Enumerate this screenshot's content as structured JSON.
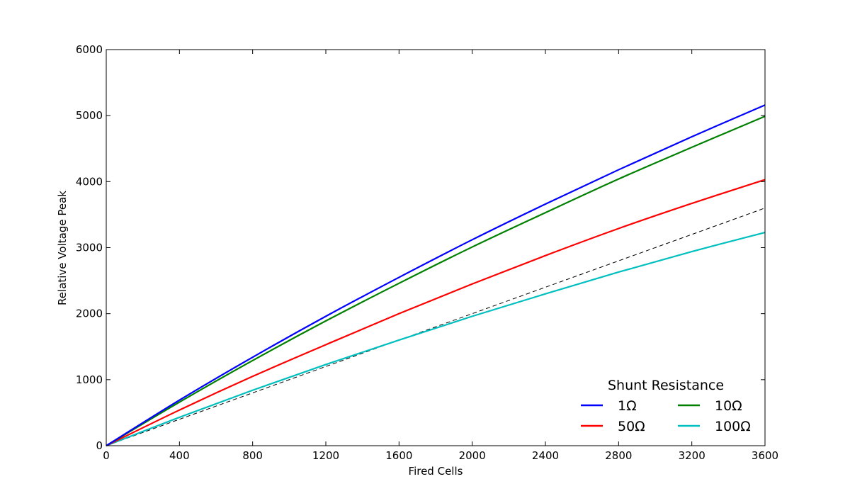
{
  "chart_data": {
    "type": "line",
    "title": "",
    "xlabel": "Fired Cells",
    "ylabel": "Relative Voltage Peak",
    "xlim": [
      0,
      3600
    ],
    "ylim": [
      0,
      6000
    ],
    "xticks": [
      0,
      400,
      800,
      1200,
      1600,
      2000,
      2400,
      2800,
      3200,
      3600
    ],
    "yticks": [
      0,
      1000,
      2000,
      3000,
      4000,
      5000,
      6000
    ],
    "grid": false,
    "legend": {
      "title": "Shunt Resistance",
      "placement": "lower-right",
      "columns": 2
    },
    "x": [
      0,
      400,
      800,
      1200,
      1600,
      2000,
      2400,
      2800,
      3200,
      3600
    ],
    "series": [
      {
        "name": "1Ω",
        "color": "#0000ff",
        "style": "solid",
        "values": [
          0,
          690,
          1340,
          1960,
          2550,
          3120,
          3660,
          4180,
          4680,
          5160
        ]
      },
      {
        "name": "10Ω",
        "color": "#008000",
        "style": "solid",
        "values": [
          0,
          660,
          1290,
          1890,
          2460,
          3010,
          3530,
          4040,
          4520,
          4990
        ]
      },
      {
        "name": "50Ω",
        "color": "#ff0000",
        "style": "solid",
        "values": [
          0,
          540,
          1050,
          1530,
          2000,
          2450,
          2880,
          3290,
          3670,
          4030
        ]
      },
      {
        "name": "100Ω",
        "color": "#00bfbf",
        "style": "solid",
        "values": [
          0,
          430,
          840,
          1230,
          1600,
          1960,
          2300,
          2630,
          2940,
          3230
        ]
      },
      {
        "name": "",
        "color": "#000000",
        "style": "dashed",
        "values": [
          0,
          400,
          800,
          1200,
          1600,
          2000,
          2400,
          2800,
          3200,
          3600
        ]
      }
    ]
  }
}
